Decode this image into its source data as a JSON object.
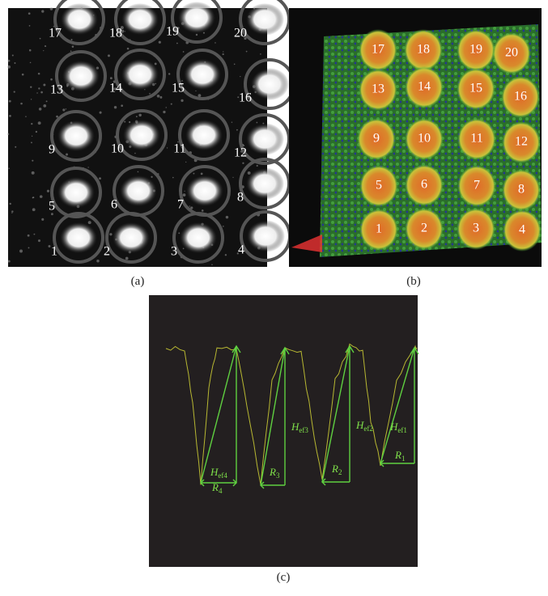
{
  "panels": [
    {
      "label": "(a)",
      "numbers": [
        "17",
        "18",
        "19",
        "20",
        "13",
        "14",
        "15",
        "16",
        "9",
        "10",
        "11",
        "12",
        "5",
        "6",
        "7",
        "8",
        "1",
        "2",
        "3",
        "4"
      ]
    },
    {
      "label": "(b)",
      "numbers": [
        "17",
        "18",
        "19",
        "20",
        "13",
        "14",
        "15",
        "16",
        "9",
        "10",
        "11",
        "12",
        "5",
        "6",
        "7",
        "8",
        "1",
        "2",
        "3",
        "4"
      ]
    },
    {
      "label": "(c)",
      "annotations": [
        {
          "symbol": "H",
          "sub": "ef4"
        },
        {
          "symbol": "R",
          "sub": "4"
        },
        {
          "symbol": "H",
          "sub": "ef3"
        },
        {
          "symbol": "R",
          "sub": "3"
        },
        {
          "symbol": "H",
          "sub": "ef2"
        },
        {
          "symbol": "R",
          "sub": "2"
        },
        {
          "symbol": "H",
          "sub": "ef1"
        },
        {
          "symbol": "R",
          "sub": "1"
        }
      ]
    }
  ]
}
